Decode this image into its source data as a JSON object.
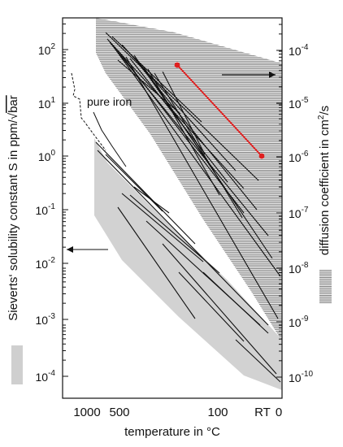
{
  "chart_data": {
    "type": "line",
    "xlabel": "temperature in °C",
    "x_ticks": [
      "1000",
      "500",
      "100",
      "RT",
      "0"
    ],
    "left_axis": {
      "label": "Sieverts' solubility constant S in ppm/√bar",
      "scale": "log",
      "ylim": [
        3e-05,
        300
      ],
      "ticks": [
        "10^2",
        "10^1",
        "10^0",
        "10^-1",
        "10^-2",
        "10^-3",
        "10^-4"
      ]
    },
    "right_axis": {
      "label": "diffusion coefficient in cm²/s",
      "scale": "log",
      "ticks": [
        "10^-4",
        "10^-5",
        "10^-6",
        "10^-7",
        "10^-8",
        "10^-9",
        "10^-10"
      ]
    },
    "annotations": [
      "pure iron"
    ],
    "highlighted_series": {
      "axis": "right",
      "color": "#e02020",
      "points": [
        {
          "x_T_C": 200,
          "D_cm2_s": 6e-05
        },
        {
          "x_T_C": 25,
          "D_cm2_s": 1.2e-06
        }
      ]
    }
  },
  "text": {
    "ylabel_left_pre": "Sieverts‘ solubility constant S in ppm/",
    "ylabel_left_rad": "bar",
    "ylabel_right_pre": "diffusion coefficient in cm",
    "ylabel_right_sup": "2",
    "ylabel_right_post": "/s",
    "annotation": "pure iron"
  },
  "legend_swatches": {
    "solubility": "#cfcfcf",
    "diffusion": "#8a8a8a"
  },
  "ticks": {
    "x": [
      "1000",
      "500",
      "100",
      "RT",
      "0"
    ],
    "left": [
      {
        "base": "10",
        "exp": "2"
      },
      {
        "base": "10",
        "exp": "1"
      },
      {
        "base": "10",
        "exp": "0"
      },
      {
        "base": "10",
        "exp": "-1"
      },
      {
        "base": "10",
        "exp": "-2"
      },
      {
        "base": "10",
        "exp": "-3"
      },
      {
        "base": "10",
        "exp": "-4"
      }
    ],
    "right": [
      {
        "base": "10",
        "exp": "-4"
      },
      {
        "base": "10",
        "exp": "-5"
      },
      {
        "base": "10",
        "exp": "-6"
      },
      {
        "base": "10",
        "exp": "-7"
      },
      {
        "base": "10",
        "exp": "-8"
      },
      {
        "base": "10",
        "exp": "-9"
      },
      {
        "base": "10",
        "exp": "-10"
      }
    ]
  }
}
